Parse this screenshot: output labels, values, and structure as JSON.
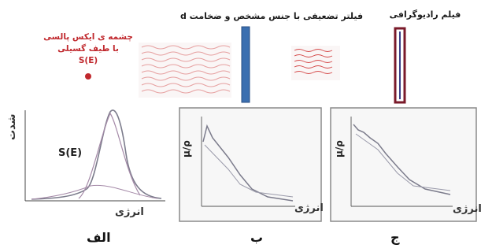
{
  "labels": {
    "source": [
      "چشمه ی ایکس پالسی",
      "با طیف گسیلی",
      "S(E)"
    ],
    "filter": "فیلتر تضعیفی با جنس مشخص و ضخامت d",
    "film": "فیلم رادیوگرافی"
  },
  "panels": {
    "a": {
      "letter": "الف",
      "ylabel": "شدت",
      "xlabel": "انرژی",
      "curve_label": "S(E)"
    },
    "b": {
      "letter": "ب",
      "ylabel": "μ/ρ",
      "xlabel": "انرژی"
    },
    "c": {
      "letter": "ج",
      "ylabel": "μ/ρ",
      "xlabel": "انرژی"
    }
  },
  "colors": {
    "source_red": "#c0282d",
    "filter_blue": "#3b6fb0",
    "film_maroon": "#7a1a2a",
    "curve_gray": "#7c7c8c",
    "component_purple": "#a58aa8"
  }
}
